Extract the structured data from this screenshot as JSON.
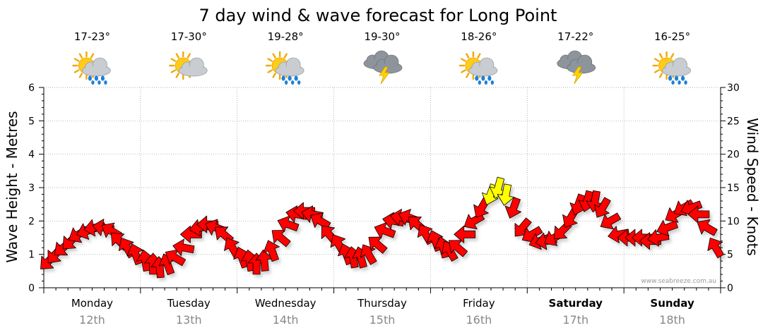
{
  "chart_data": {
    "type": "line",
    "title": "7 day wind & wave forecast for Long Point",
    "ylabel_left": "Wave Height - Metres",
    "ylabel_right": "Wind Speed - Knots",
    "ylim_left": [
      0,
      6
    ],
    "ylim_right": [
      0,
      30
    ],
    "yticks_left": [
      "0",
      "1",
      "2",
      "3",
      "4",
      "5",
      "6"
    ],
    "yticks_right": [
      "0",
      "5",
      "10",
      "15",
      "20",
      "25",
      "30"
    ],
    "grid": true,
    "watermark": "www.seabreeze.com.au",
    "colors": {
      "normal_wind": "#ff0000",
      "strong_wind": "#ffff00",
      "grid": "#999999",
      "day_label": "#888888"
    },
    "days": [
      {
        "day": "Monday",
        "date": "12th",
        "temp": "17-23°",
        "icon": "sun-cloud-rain-icon",
        "bold": false
      },
      {
        "day": "Tuesday",
        "date": "13th",
        "temp": "17-30°",
        "icon": "sun-cloud-icon",
        "bold": false
      },
      {
        "day": "Wednesday",
        "date": "14th",
        "temp": "19-28°",
        "icon": "sun-cloud-rain-icon",
        "bold": false
      },
      {
        "day": "Thursday",
        "date": "15th",
        "temp": "19-30°",
        "icon": "cloud-storm-icon",
        "bold": false
      },
      {
        "day": "Friday",
        "date": "16th",
        "temp": "18-26°",
        "icon": "sun-cloud-rain-icon",
        "bold": false
      },
      {
        "day": "Saturday",
        "date": "17th",
        "temp": "17-22°",
        "icon": "cloud-storm-icon",
        "bold": true
      },
      {
        "day": "Sunday",
        "date": "18th",
        "temp": "16-25°",
        "icon": "sun-cloud-rain-icon",
        "bold": true
      }
    ],
    "wind_series": {
      "name": "Wind speed & direction (knots)",
      "x_unit": "days from start",
      "x": [
        0.05,
        0.12,
        0.2,
        0.28,
        0.36,
        0.45,
        0.53,
        0.62,
        0.7,
        0.78,
        0.86,
        0.95,
        1.05,
        1.13,
        1.2,
        1.28,
        1.36,
        1.45,
        1.53,
        1.62,
        1.7,
        1.78,
        1.86,
        1.95,
        2.05,
        2.13,
        2.2,
        2.28,
        2.36,
        2.45,
        2.53,
        2.62,
        2.7,
        2.78,
        2.86,
        2.95,
        3.05,
        3.13,
        3.2,
        3.28,
        3.36,
        3.45,
        3.53,
        3.62,
        3.7,
        3.78,
        3.86,
        3.95,
        4.05,
        4.13,
        4.2,
        4.28,
        4.36,
        4.45,
        4.53,
        4.62,
        4.7,
        4.78,
        4.86,
        4.95,
        5.05,
        5.13,
        5.2,
        5.28,
        5.36,
        5.45,
        5.53,
        5.62,
        5.7,
        5.78,
        5.86,
        5.95,
        6.05,
        6.13,
        6.2,
        6.28,
        6.36,
        6.45,
        6.53,
        6.62,
        6.7,
        6.78,
        6.86,
        6.95
      ],
      "speed": [
        4,
        5,
        6,
        7,
        8,
        8.5,
        9,
        9,
        8.5,
        7,
        6,
        5,
        4,
        3.5,
        3,
        3.5,
        4.5,
        6,
        8,
        9,
        9.5,
        9,
        8,
        6,
        4.5,
        4,
        3.5,
        4,
        5.5,
        7.5,
        9.5,
        11,
        11.5,
        11,
        10,
        8,
        6.5,
        5,
        4.5,
        4.5,
        5,
        6.5,
        8.5,
        10,
        10.5,
        10.5,
        9.5,
        8,
        7,
        6,
        5.5,
        6,
        8,
        10,
        12,
        14,
        15,
        14,
        12,
        9,
        8,
        7,
        7,
        7.5,
        8.5,
        10.5,
        12.5,
        13,
        13,
        12,
        10,
        8,
        7.5,
        7.5,
        7.5,
        7,
        7.5,
        9,
        11,
        12,
        12,
        11,
        9,
        6
      ],
      "direction_deg": [
        45,
        40,
        50,
        45,
        60,
        70,
        80,
        100,
        120,
        135,
        150,
        160,
        170,
        180,
        175,
        160,
        120,
        100,
        90,
        80,
        90,
        110,
        130,
        150,
        160,
        170,
        180,
        175,
        160,
        130,
        110,
        100,
        90,
        100,
        120,
        140,
        150,
        160,
        170,
        165,
        150,
        130,
        110,
        100,
        100,
        110,
        130,
        150,
        160,
        165,
        150,
        130,
        90,
        60,
        30,
        20,
        15,
        10,
        20,
        40,
        60,
        70,
        80,
        60,
        45,
        30,
        20,
        15,
        10,
        30,
        60,
        80,
        90,
        90,
        90,
        90,
        80,
        70,
        60,
        60,
        70,
        90,
        120,
        150
      ]
    }
  }
}
